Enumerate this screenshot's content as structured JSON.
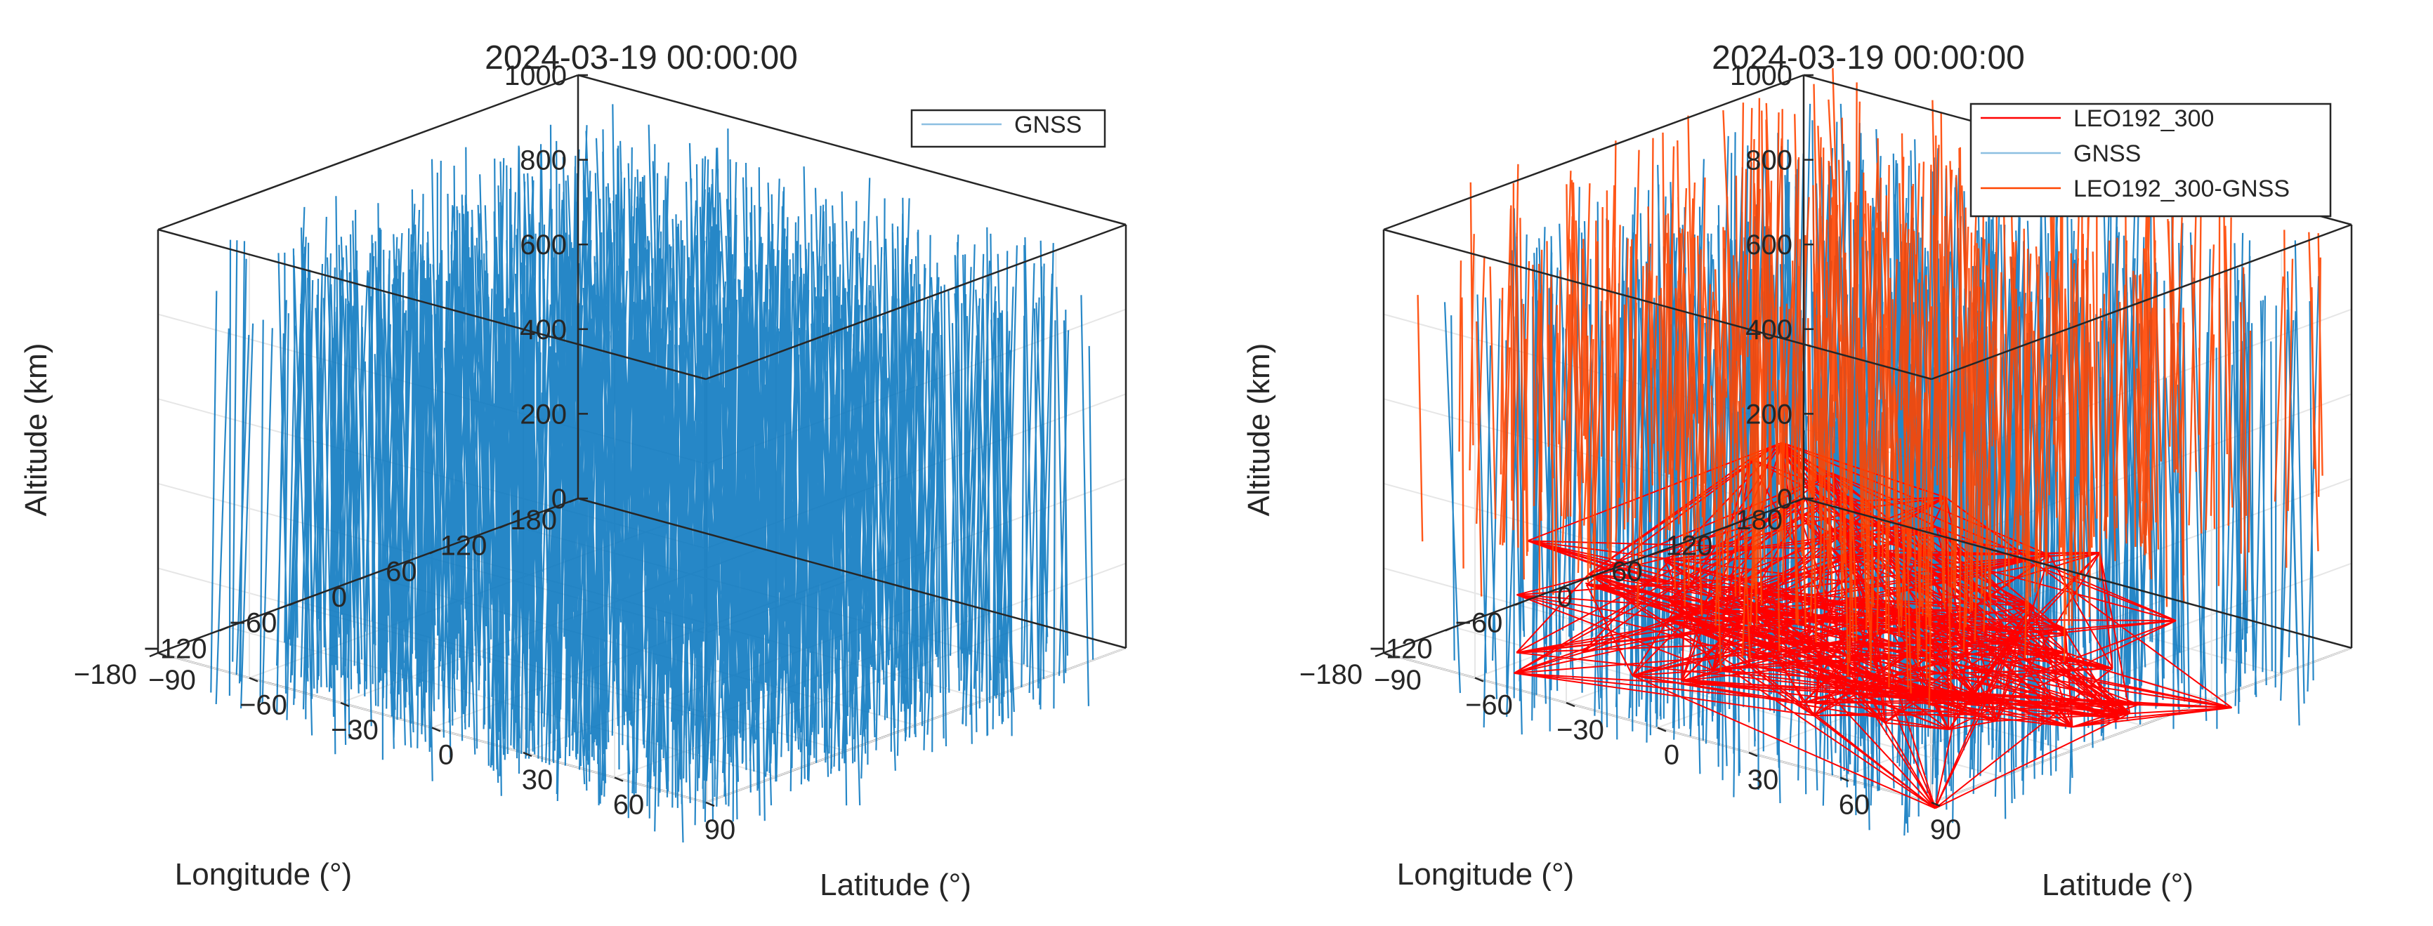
{
  "chart_data": [
    {
      "type": "line3d",
      "title": "2024-03-19 00:00:00",
      "xlabel": "Longitude (°)",
      "ylabel": "Latitude (°)",
      "zlabel": "Altitude (km)",
      "xlim": [
        -180,
        180
      ],
      "ylim": [
        -90,
        90
      ],
      "zlim": [
        0,
        1000
      ],
      "xticks": [
        "180",
        "120",
        "60",
        "0",
        "−60",
        "−120",
        "−180"
      ],
      "yticks": [
        "−90",
        "−60",
        "−30",
        "0",
        "30",
        "60",
        "90"
      ],
      "zticks": [
        "0",
        "200",
        "400",
        "600",
        "800",
        "1000"
      ],
      "grid": true,
      "legend_position": "top-right",
      "series": [
        {
          "name": "GNSS",
          "color": "#0072BD",
          "description": "dense near-vertical links from ground toward ~1000 km"
        }
      ]
    },
    {
      "type": "line3d",
      "title": "2024-03-19 00:00:00",
      "xlabel": "Longitude (°)",
      "ylabel": "Latitude (°)",
      "zlabel": "Altitude (km)",
      "xlim": [
        -180,
        180
      ],
      "ylim": [
        -90,
        90
      ],
      "zlim": [
        0,
        1000
      ],
      "xticks": [
        "180",
        "120",
        "60",
        "0",
        "−60",
        "−120",
        "−180"
      ],
      "yticks": [
        "−90",
        "−60",
        "−30",
        "0",
        "30",
        "60",
        "90"
      ],
      "zticks": [
        "0",
        "200",
        "400",
        "600",
        "800",
        "1000"
      ],
      "grid": true,
      "legend_position": "top-right",
      "series": [
        {
          "name": "LEO192_300",
          "color": "#FF0000"
        },
        {
          "name": "GNSS",
          "color": "#0072BD"
        },
        {
          "name": "LEO192_300-GNSS",
          "color": "#FF4500"
        }
      ]
    }
  ]
}
